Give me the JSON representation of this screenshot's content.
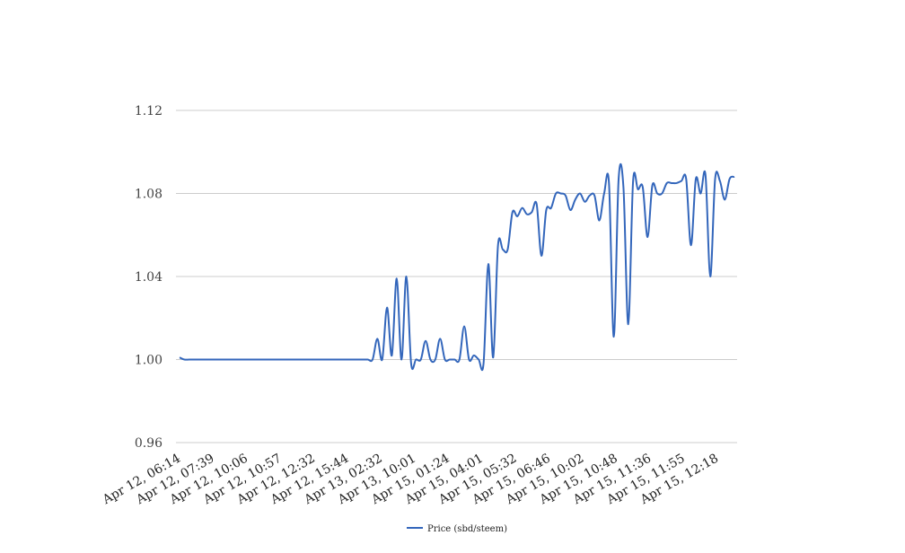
{
  "chart_data": {
    "type": "line",
    "title": "",
    "xlabel": "",
    "ylabel": "",
    "ylim": [
      0.96,
      1.12
    ],
    "yticks": [
      0.96,
      1.0,
      1.04,
      1.08,
      1.12
    ],
    "ytick_labels": [
      "0.96",
      "1.00",
      "1.04",
      "1.08",
      "1.12"
    ],
    "grid": true,
    "legend_position": "bottom-center",
    "xtick_labels": [
      "Apr 12, 06:14",
      "Apr 12, 07:39",
      "Apr 12, 10:06",
      "Apr 12, 10:57",
      "Apr 12, 12:32",
      "Apr 12, 15:44",
      "Apr 13, 02:32",
      "Apr 13, 10:01",
      "Apr 15, 01:24",
      "Apr 15, 04:01",
      "Apr 15, 05:32",
      "Apr 15, 06:46",
      "Apr 15, 10:02",
      "Apr 15, 10:48",
      "Apr 15, 11:36",
      "Apr 15, 11:55",
      "Apr 15, 12:18"
    ],
    "series": [
      {
        "name": "Price (sbd/steem)",
        "color": "#3366bb",
        "values": [
          1.001,
          1.0,
          1.0,
          1.0,
          1.0,
          1.0,
          1.0,
          1.0,
          1.0,
          1.0,
          1.0,
          1.0,
          1.0,
          1.0,
          1.0,
          1.0,
          1.0,
          1.0,
          1.0,
          1.0,
          1.0,
          1.0,
          1.0,
          1.0,
          1.0,
          1.0,
          1.0,
          1.0,
          1.0,
          1.0,
          1.0,
          1.0,
          1.0,
          1.0,
          1.0,
          1.0,
          1.0,
          1.0,
          1.0,
          1.0,
          1.0,
          1.01,
          1.0,
          1.025,
          1.002,
          1.039,
          1.0,
          1.04,
          0.998,
          1.0,
          1.0,
          1.009,
          1.0,
          1.0,
          1.01,
          1.0,
          1.0,
          1.0,
          1.0,
          1.016,
          1.0,
          1.002,
          1.0,
          0.998,
          1.046,
          1.001,
          1.055,
          1.053,
          1.053,
          1.071,
          1.069,
          1.073,
          1.07,
          1.071,
          1.075,
          1.05,
          1.072,
          1.073,
          1.08,
          1.08,
          1.079,
          1.072,
          1.077,
          1.08,
          1.076,
          1.079,
          1.079,
          1.067,
          1.08,
          1.085,
          1.011,
          1.087,
          1.083,
          1.017,
          1.086,
          1.082,
          1.083,
          1.059,
          1.084,
          1.08,
          1.08,
          1.085,
          1.085,
          1.085,
          1.086,
          1.087,
          1.055,
          1.087,
          1.08,
          1.089,
          1.04,
          1.087,
          1.086,
          1.077,
          1.087,
          1.088
        ]
      }
    ]
  }
}
